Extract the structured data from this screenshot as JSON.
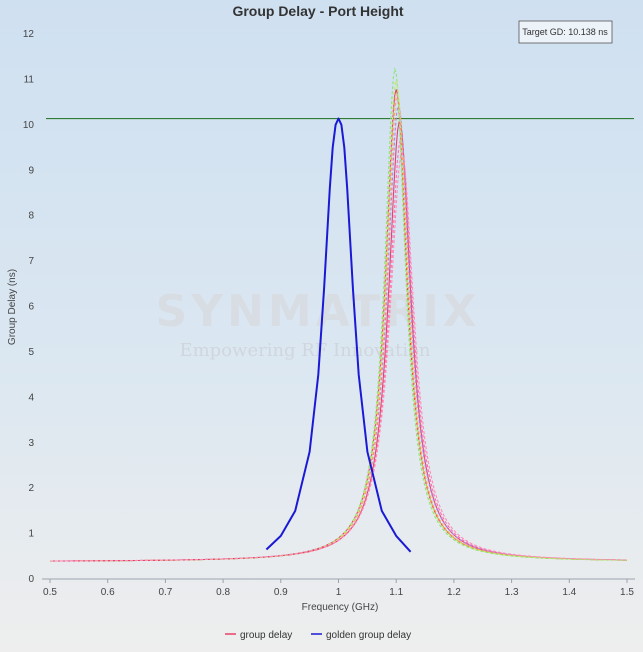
{
  "chart_data": {
    "type": "line",
    "title": "Group Delay - Port Height",
    "xlabel": "Frequency (GHz)",
    "ylabel": "Group Delay (ns)",
    "xlim": [
      0.48,
      1.51
    ],
    "ylim": [
      0,
      12.3
    ],
    "xticks": [
      0.5,
      0.6,
      0.7,
      0.8,
      0.9,
      1,
      1.1,
      1.2,
      1.3,
      1.4,
      1.5
    ],
    "xtick_labels": [
      "0.5",
      "0.6",
      "0.7",
      "0.8",
      "0.9",
      "1",
      "1.1",
      "1.2",
      "1.3",
      "1.4",
      "1.5"
    ],
    "yticks": [
      0,
      1,
      2,
      3,
      4,
      5,
      6,
      7,
      8,
      9,
      10,
      11,
      12
    ],
    "ytick_labels": [
      "0",
      "1",
      "2",
      "3",
      "4",
      "5",
      "6",
      "7",
      "8",
      "9",
      "10",
      "11",
      "12"
    ],
    "grid": false,
    "legend_position": "bottom-center",
    "target_line": {
      "value": 10.138,
      "color": "#2e7d32"
    },
    "annotation": "Target GD: 10.138 ns",
    "watermark": {
      "main": "SYNMATRIX",
      "sub": "Empowering RF Innovation"
    },
    "legend": [
      {
        "name": "group delay",
        "color": "#e8416a"
      },
      {
        "name": "golden group delay",
        "color": "#1a1ad6"
      }
    ],
    "golden_series": {
      "name": "golden group delay",
      "color": "#1a1ad6",
      "x": [
        0.875,
        0.9,
        0.925,
        0.95,
        0.965,
        0.975,
        0.985,
        0.99,
        0.995,
        1.0,
        1.005,
        1.01,
        1.015,
        1.025,
        1.035,
        1.05,
        1.075,
        1.1,
        1.125
      ],
      "y": [
        0.65,
        0.95,
        1.5,
        2.8,
        4.5,
        6.4,
        8.6,
        9.5,
        10.0,
        10.14,
        10.0,
        9.5,
        8.6,
        6.4,
        4.5,
        2.8,
        1.5,
        0.95,
        0.6
      ]
    },
    "variant_series": [
      {
        "color": "#e8416a",
        "dash": "none",
        "f0": 1.1,
        "peak": 10.4,
        "w": 0.023
      },
      {
        "color": "#e8416a",
        "dash": "none",
        "f0": 1.106,
        "peak": 9.7,
        "w": 0.024
      },
      {
        "color": "#ff6fae",
        "dash": "3,2",
        "f0": 1.108,
        "peak": 9.3,
        "w": 0.025
      },
      {
        "color": "#b084e8",
        "dash": "3,2",
        "f0": 1.104,
        "peak": 10.05,
        "w": 0.024
      },
      {
        "color": "#ffa64d",
        "dash": "3,2",
        "f0": 1.102,
        "peak": 10.3,
        "w": 0.023
      },
      {
        "color": "#8ee57a",
        "dash": "3,2",
        "f0": 1.098,
        "peak": 10.85,
        "w": 0.022
      },
      {
        "color": "#c6e86a",
        "dash": "3,2",
        "f0": 1.1,
        "peak": 10.6,
        "w": 0.0225
      },
      {
        "color": "#ff8ab5",
        "dash": "3,2",
        "f0": 1.11,
        "peak": 9.0,
        "w": 0.026
      }
    ]
  }
}
